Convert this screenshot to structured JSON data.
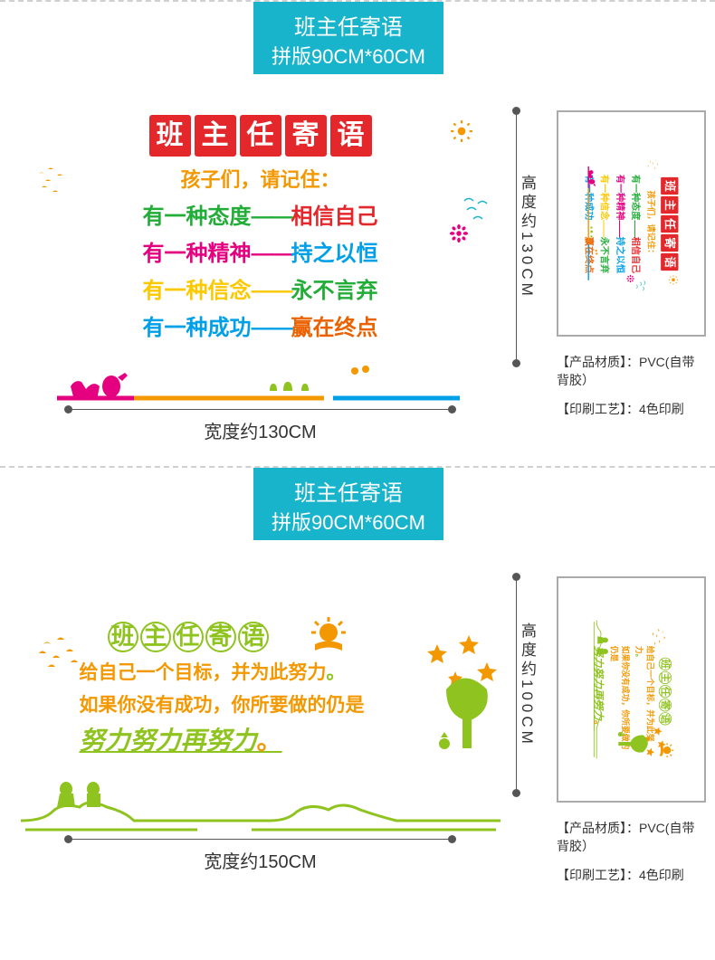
{
  "header": {
    "title": "班主任寄语",
    "sub": "拼版90CM*60CM"
  },
  "p1": {
    "title_chars": [
      "班",
      "主",
      "任",
      "寄",
      "语"
    ],
    "subtitle": "孩子们，请记住：",
    "lines": [
      {
        "a": "有一种态度",
        "sep": "——",
        "b": "相信自己",
        "ca": "#22ac38",
        "cb": "#e4272b"
      },
      {
        "a": "有一种精神",
        "sep": "——",
        "b": "持之以恒",
        "ca": "#e4007f",
        "cb": "#00a0e9"
      },
      {
        "a": "有一种信念",
        "sep": "——",
        "b": "永不言弃",
        "ca": "#fcc800",
        "cb": "#22ac38"
      },
      {
        "a": "有一种成功",
        "sep": "——",
        "b": "赢在终点",
        "ca": "#00a0e9",
        "cb": "#eb6100"
      }
    ],
    "height_label": "高度约130CM",
    "width_label": "宽度约130CM"
  },
  "p2": {
    "title_chars": [
      "班",
      "主",
      "任",
      "寄",
      "语"
    ],
    "line1": "给自己一个目标，并为此努力",
    "line2": "如果你没有成功，你所要做的仍是",
    "emph": "努力努力再努力",
    "dot": "。",
    "height_label": "高度约100CM",
    "width_label": "宽度约150CM"
  },
  "meta": {
    "material": "【产品材质】：PVC(自带背胶）",
    "process": "【印刷工艺】：4色印刷"
  },
  "colors": {
    "teal": "#18b4cc",
    "red": "#e4272b",
    "orange": "#f39800",
    "pink": "#e4007f",
    "blue": "#00a0e9",
    "green": "#22ac38",
    "lime": "#8fc31f",
    "yellow": "#fcc800"
  }
}
